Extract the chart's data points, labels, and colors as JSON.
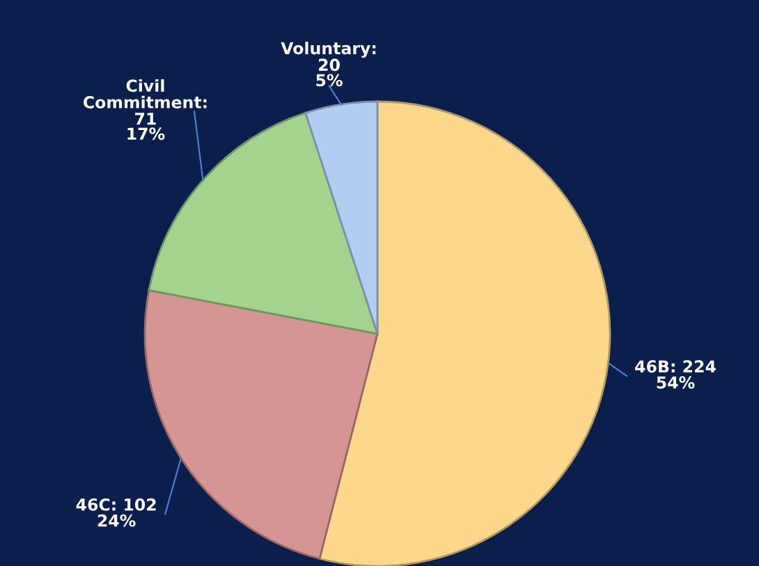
{
  "chart_data": {
    "type": "pie",
    "categories": [
      "46B: 224",
      "46C: 102",
      "Civil Commitment: 71",
      "Voluntary: 20"
    ],
    "values": [
      54,
      24,
      17,
      5
    ],
    "value_labels": [
      "54%",
      "24%",
      "17%",
      "5%"
    ],
    "colors": [
      "#fdd88c",
      "#d59593",
      "#a3d38d",
      "#b3cdf0"
    ]
  }
}
